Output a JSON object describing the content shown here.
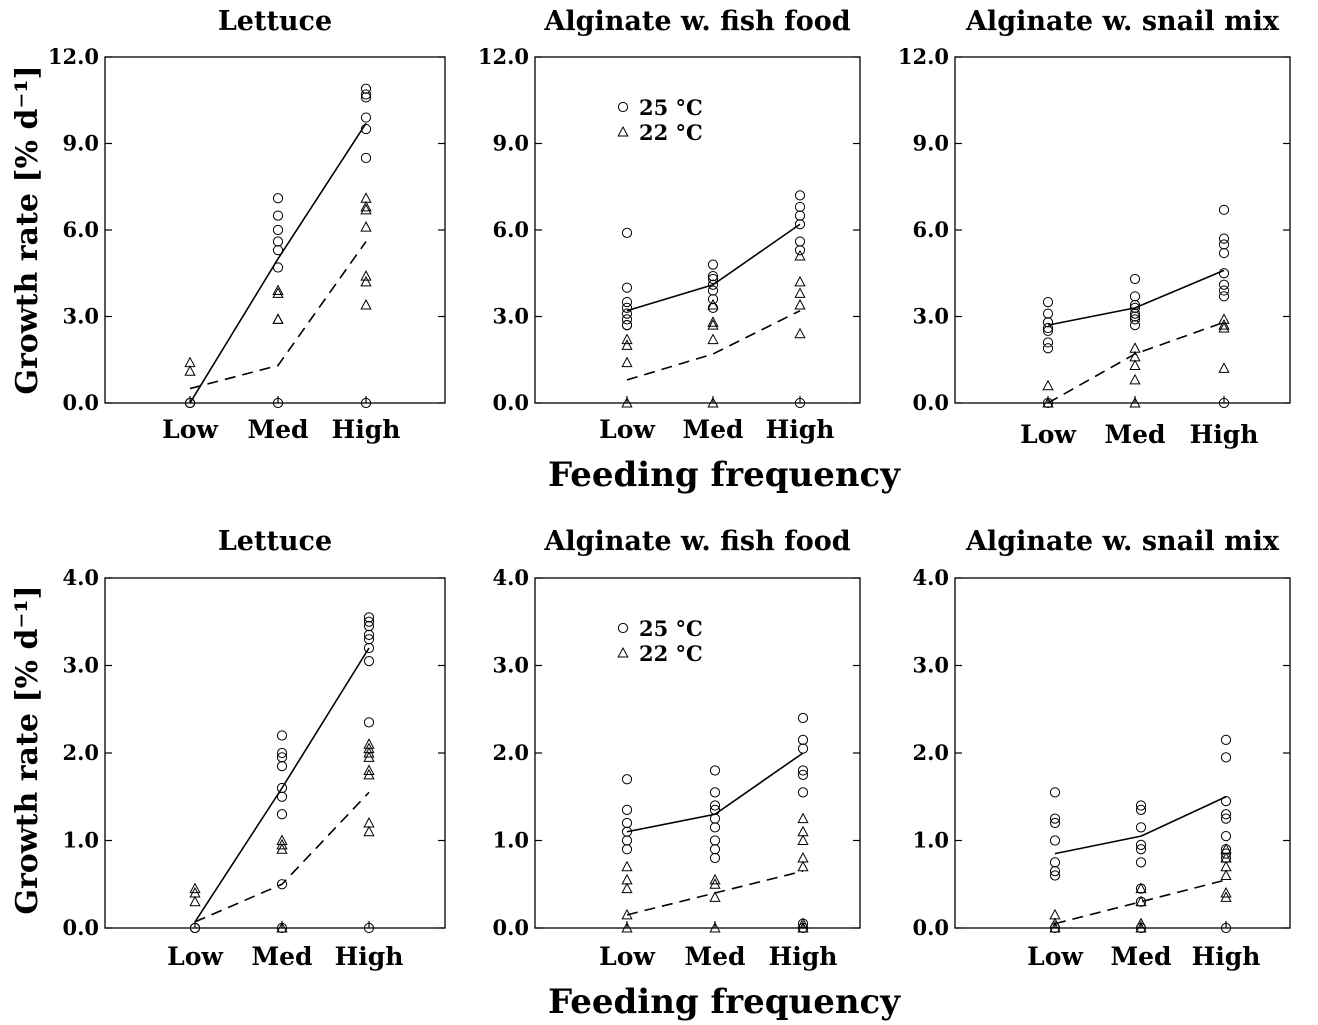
{
  "figure": {
    "xlabel_top": "Feeding frequency",
    "xlabel_bottom": "Feeding frequency",
    "ylabel_top": "Growth rate [% d⁻¹]",
    "ylabel_bottom": "Growth rate [% d⁻¹]"
  },
  "legend": {
    "circle_label": "25 °C",
    "triangle_label": "22 °C"
  },
  "chart_data": [
    {
      "type": "scatter",
      "title": "Lettuce",
      "categories": [
        "Low",
        "Med",
        "High"
      ],
      "ylim": [
        0,
        12
      ],
      "yticks": [
        0,
        3,
        6,
        9,
        12
      ],
      "ytick_labels": [
        "0.0",
        "3.0",
        "6.0",
        "9.0",
        "12.0"
      ],
      "xlabel": "",
      "ylabel": "Growth rate [% d⁻¹]",
      "grid": false,
      "series": [
        {
          "name": "25 °C",
          "marker": "circle",
          "line": "solid",
          "points": [
            [
              0,
              0.0
            ],
            [
              0,
              0.0
            ],
            [
              1,
              7.1
            ],
            [
              1,
              6.5
            ],
            [
              1,
              6.0
            ],
            [
              1,
              5.6
            ],
            [
              1,
              5.3
            ],
            [
              1,
              4.7
            ],
            [
              1,
              0.0
            ],
            [
              2,
              10.9
            ],
            [
              2,
              10.7
            ],
            [
              2,
              10.6
            ],
            [
              2,
              9.9
            ],
            [
              2,
              9.5
            ],
            [
              2,
              8.5
            ],
            [
              2,
              0.0
            ]
          ],
          "means": [
            0.0,
            5.0,
            9.7
          ]
        },
        {
          "name": "22 °C",
          "marker": "triangle",
          "line": "dashed",
          "points": [
            [
              0,
              1.4
            ],
            [
              0,
              1.1
            ],
            [
              1,
              3.9
            ],
            [
              1,
              3.8
            ],
            [
              1,
              2.9
            ],
            [
              1,
              2.9
            ],
            [
              2,
              7.1
            ],
            [
              2,
              6.8
            ],
            [
              2,
              6.7
            ],
            [
              2,
              6.1
            ],
            [
              2,
              4.4
            ],
            [
              2,
              4.2
            ],
            [
              2,
              3.4
            ]
          ],
          "means": [
            0.5,
            1.3,
            5.6
          ]
        }
      ]
    },
    {
      "type": "scatter",
      "title": "Alginate w. fish food",
      "categories": [
        "Low",
        "Med",
        "High"
      ],
      "ylim": [
        0,
        12
      ],
      "yticks": [
        0,
        3,
        6,
        9,
        12
      ],
      "ytick_labels": [
        "0.0",
        "3.0",
        "6.0",
        "9.0",
        "12.0"
      ],
      "xlabel": "",
      "ylabel": "",
      "grid": false,
      "legend_position": "top-left",
      "series": [
        {
          "name": "25 °C",
          "marker": "circle",
          "line": "solid",
          "points": [
            [
              0,
              5.9
            ],
            [
              0,
              4.0
            ],
            [
              0,
              3.5
            ],
            [
              0,
              3.3
            ],
            [
              0,
              3.1
            ],
            [
              0,
              2.9
            ],
            [
              0,
              2.7
            ],
            [
              0,
              2.7
            ],
            [
              1,
              4.8
            ],
            [
              1,
              4.4
            ],
            [
              1,
              4.3
            ],
            [
              1,
              4.1
            ],
            [
              1,
              3.9
            ],
            [
              1,
              3.6
            ],
            [
              1,
              3.3
            ],
            [
              2,
              7.2
            ],
            [
              2,
              6.8
            ],
            [
              2,
              6.5
            ],
            [
              2,
              6.2
            ],
            [
              2,
              5.6
            ],
            [
              2,
              5.3
            ],
            [
              2,
              0.0
            ]
          ],
          "means": [
            3.2,
            4.1,
            6.2
          ]
        },
        {
          "name": "22 °C",
          "marker": "triangle",
          "line": "dashed",
          "points": [
            [
              0,
              2.2
            ],
            [
              0,
              2.0
            ],
            [
              0,
              1.4
            ],
            [
              0,
              0.0
            ],
            [
              1,
              3.4
            ],
            [
              1,
              2.8
            ],
            [
              1,
              2.7
            ],
            [
              1,
              2.2
            ],
            [
              1,
              0.0
            ],
            [
              2,
              5.1
            ],
            [
              2,
              4.2
            ],
            [
              2,
              3.8
            ],
            [
              2,
              3.4
            ],
            [
              2,
              2.4
            ]
          ],
          "means": [
            0.8,
            1.7,
            3.2
          ]
        }
      ]
    },
    {
      "type": "scatter",
      "title": "Alginate w. snail mix",
      "categories": [
        "Low",
        "Med",
        "High"
      ],
      "ylim": [
        0,
        12
      ],
      "yticks": [
        0,
        3,
        6,
        9,
        12
      ],
      "ytick_labels": [
        "0.0",
        "3.0",
        "6.0",
        "9.0",
        "12.0"
      ],
      "xlabel": "",
      "ylabel": "",
      "grid": false,
      "series": [
        {
          "name": "25 °C",
          "marker": "circle",
          "line": "solid",
          "points": [
            [
              0,
              3.5
            ],
            [
              0,
              3.1
            ],
            [
              0,
              2.8
            ],
            [
              0,
              2.6
            ],
            [
              0,
              2.5
            ],
            [
              0,
              2.1
            ],
            [
              0,
              1.9
            ],
            [
              0,
              0.0
            ],
            [
              1,
              4.3
            ],
            [
              1,
              3.7
            ],
            [
              1,
              3.4
            ],
            [
              1,
              3.3
            ],
            [
              1,
              3.1
            ],
            [
              1,
              3.0
            ],
            [
              1,
              2.9
            ],
            [
              1,
              2.7
            ],
            [
              2,
              6.7
            ],
            [
              2,
              5.7
            ],
            [
              2,
              5.5
            ],
            [
              2,
              5.2
            ],
            [
              2,
              4.5
            ],
            [
              2,
              4.1
            ],
            [
              2,
              3.9
            ],
            [
              2,
              3.7
            ],
            [
              2,
              0.0
            ]
          ],
          "means": [
            2.7,
            3.3,
            4.6
          ]
        },
        {
          "name": "22 °C",
          "marker": "triangle",
          "line": "dashed",
          "points": [
            [
              0,
              0.6
            ],
            [
              0,
              0.0
            ],
            [
              1,
              1.9
            ],
            [
              1,
              1.6
            ],
            [
              1,
              1.3
            ],
            [
              1,
              0.8
            ],
            [
              1,
              0.0
            ],
            [
              2,
              2.9
            ],
            [
              2,
              2.7
            ],
            [
              2,
              2.6
            ],
            [
              2,
              1.2
            ]
          ],
          "means": [
            0.0,
            1.7,
            2.8
          ]
        }
      ]
    },
    {
      "type": "scatter",
      "title": "Lettuce",
      "categories": [
        "Low",
        "Med",
        "High"
      ],
      "ylim": [
        0,
        4
      ],
      "yticks": [
        0,
        1,
        2,
        3,
        4
      ],
      "ytick_labels": [
        "0.0",
        "1.0",
        "2.0",
        "3.0",
        "4.0"
      ],
      "xlabel": "",
      "ylabel": "Growth rate [% d⁻¹]",
      "grid": false,
      "series": [
        {
          "name": "25 °C",
          "marker": "circle",
          "line": "solid",
          "points": [
            [
              0,
              0.0
            ],
            [
              0,
              0.0
            ],
            [
              1,
              2.2
            ],
            [
              1,
              2.0
            ],
            [
              1,
              1.95
            ],
            [
              1,
              1.85
            ],
            [
              1,
              1.6
            ],
            [
              1,
              1.5
            ],
            [
              1,
              1.3
            ],
            [
              1,
              0.5
            ],
            [
              1,
              0.0
            ],
            [
              2,
              3.55
            ],
            [
              2,
              3.5
            ],
            [
              2,
              3.45
            ],
            [
              2,
              3.35
            ],
            [
              2,
              3.3
            ],
            [
              2,
              3.2
            ],
            [
              2,
              3.05
            ],
            [
              2,
              2.35
            ],
            [
              2,
              0.0
            ]
          ],
          "means": [
            0.07,
            1.6,
            3.2
          ]
        },
        {
          "name": "22 °C",
          "marker": "triangle",
          "line": "dashed",
          "points": [
            [
              0,
              0.45
            ],
            [
              0,
              0.4
            ],
            [
              0,
              0.3
            ],
            [
              1,
              1.0
            ],
            [
              1,
              0.95
            ],
            [
              1,
              0.9
            ],
            [
              1,
              0.0
            ],
            [
              2,
              2.1
            ],
            [
              2,
              2.05
            ],
            [
              2,
              2.0
            ],
            [
              2,
              1.95
            ],
            [
              2,
              1.8
            ],
            [
              2,
              1.75
            ],
            [
              2,
              1.2
            ],
            [
              2,
              1.1
            ]
          ],
          "means": [
            0.07,
            0.5,
            1.55
          ]
        }
      ]
    },
    {
      "type": "scatter",
      "title": "Alginate w. fish food",
      "categories": [
        "Low",
        "Med",
        "High"
      ],
      "ylim": [
        0,
        4
      ],
      "yticks": [
        0,
        1,
        2,
        3,
        4
      ],
      "ytick_labels": [
        "0.0",
        "1.0",
        "2.0",
        "3.0",
        "4.0"
      ],
      "xlabel": "",
      "ylabel": "",
      "grid": false,
      "legend_position": "top-left",
      "series": [
        {
          "name": "25 °C",
          "marker": "circle",
          "line": "solid",
          "points": [
            [
              0,
              1.7
            ],
            [
              0,
              1.35
            ],
            [
              0,
              1.2
            ],
            [
              0,
              1.1
            ],
            [
              0,
              1.0
            ],
            [
              0,
              0.9
            ],
            [
              1,
              1.8
            ],
            [
              1,
              1.55
            ],
            [
              1,
              1.4
            ],
            [
              1,
              1.35
            ],
            [
              1,
              1.25
            ],
            [
              1,
              1.15
            ],
            [
              1,
              1.0
            ],
            [
              1,
              0.9
            ],
            [
              1,
              0.8
            ],
            [
              2,
              2.4
            ],
            [
              2,
              2.15
            ],
            [
              2,
              2.05
            ],
            [
              2,
              1.8
            ],
            [
              2,
              1.75
            ],
            [
              2,
              1.55
            ],
            [
              2,
              0.05
            ],
            [
              2,
              0.0
            ]
          ],
          "means": [
            1.1,
            1.3,
            2.0
          ]
        },
        {
          "name": "22 °C",
          "marker": "triangle",
          "line": "dashed",
          "points": [
            [
              0,
              0.7
            ],
            [
              0,
              0.55
            ],
            [
              0,
              0.45
            ],
            [
              0,
              0.15
            ],
            [
              0,
              0.0
            ],
            [
              1,
              0.55
            ],
            [
              1,
              0.5
            ],
            [
              1,
              0.35
            ],
            [
              1,
              0.0
            ],
            [
              2,
              1.25
            ],
            [
              2,
              1.1
            ],
            [
              2,
              1.0
            ],
            [
              2,
              0.8
            ],
            [
              2,
              0.7
            ],
            [
              2,
              0.05
            ],
            [
              2,
              0.0
            ]
          ],
          "means": [
            0.15,
            0.4,
            0.65
          ]
        }
      ]
    },
    {
      "type": "scatter",
      "title": "Alginate w. snail mix",
      "categories": [
        "Low",
        "Med",
        "High"
      ],
      "ylim": [
        0,
        4
      ],
      "yticks": [
        0,
        1,
        2,
        3,
        4
      ],
      "ytick_labels": [
        "0.0",
        "1.0",
        "2.0",
        "3.0",
        "4.0"
      ],
      "xlabel": "",
      "ylabel": "",
      "grid": false,
      "series": [
        {
          "name": "25 °C",
          "marker": "circle",
          "line": "solid",
          "points": [
            [
              0,
              1.55
            ],
            [
              0,
              1.25
            ],
            [
              0,
              1.2
            ],
            [
              0,
              1.0
            ],
            [
              0,
              0.75
            ],
            [
              0,
              0.65
            ],
            [
              0,
              0.6
            ],
            [
              0,
              0.0
            ],
            [
              1,
              1.4
            ],
            [
              1,
              1.35
            ],
            [
              1,
              1.15
            ],
            [
              1,
              0.95
            ],
            [
              1,
              0.9
            ],
            [
              1,
              0.75
            ],
            [
              1,
              0.45
            ],
            [
              1,
              0.3
            ],
            [
              1,
              0.0
            ],
            [
              2,
              2.15
            ],
            [
              2,
              1.95
            ],
            [
              2,
              1.45
            ],
            [
              2,
              1.3
            ],
            [
              2,
              1.25
            ],
            [
              2,
              1.05
            ],
            [
              2,
              0.9
            ],
            [
              2,
              0.85
            ],
            [
              2,
              0.8
            ],
            [
              2,
              0.0
            ]
          ],
          "means": [
            0.85,
            1.05,
            1.5
          ]
        },
        {
          "name": "22 °C",
          "marker": "triangle",
          "line": "dashed",
          "points": [
            [
              0,
              0.15
            ],
            [
              0,
              0.05
            ],
            [
              0,
              0.0
            ],
            [
              1,
              0.45
            ],
            [
              1,
              0.3
            ],
            [
              1,
              0.05
            ],
            [
              1,
              0.0
            ],
            [
              2,
              0.9
            ],
            [
              2,
              0.8
            ],
            [
              2,
              0.7
            ],
            [
              2,
              0.6
            ],
            [
              2,
              0.4
            ],
            [
              2,
              0.35
            ]
          ],
          "means": [
            0.05,
            0.3,
            0.55
          ]
        }
      ]
    }
  ]
}
